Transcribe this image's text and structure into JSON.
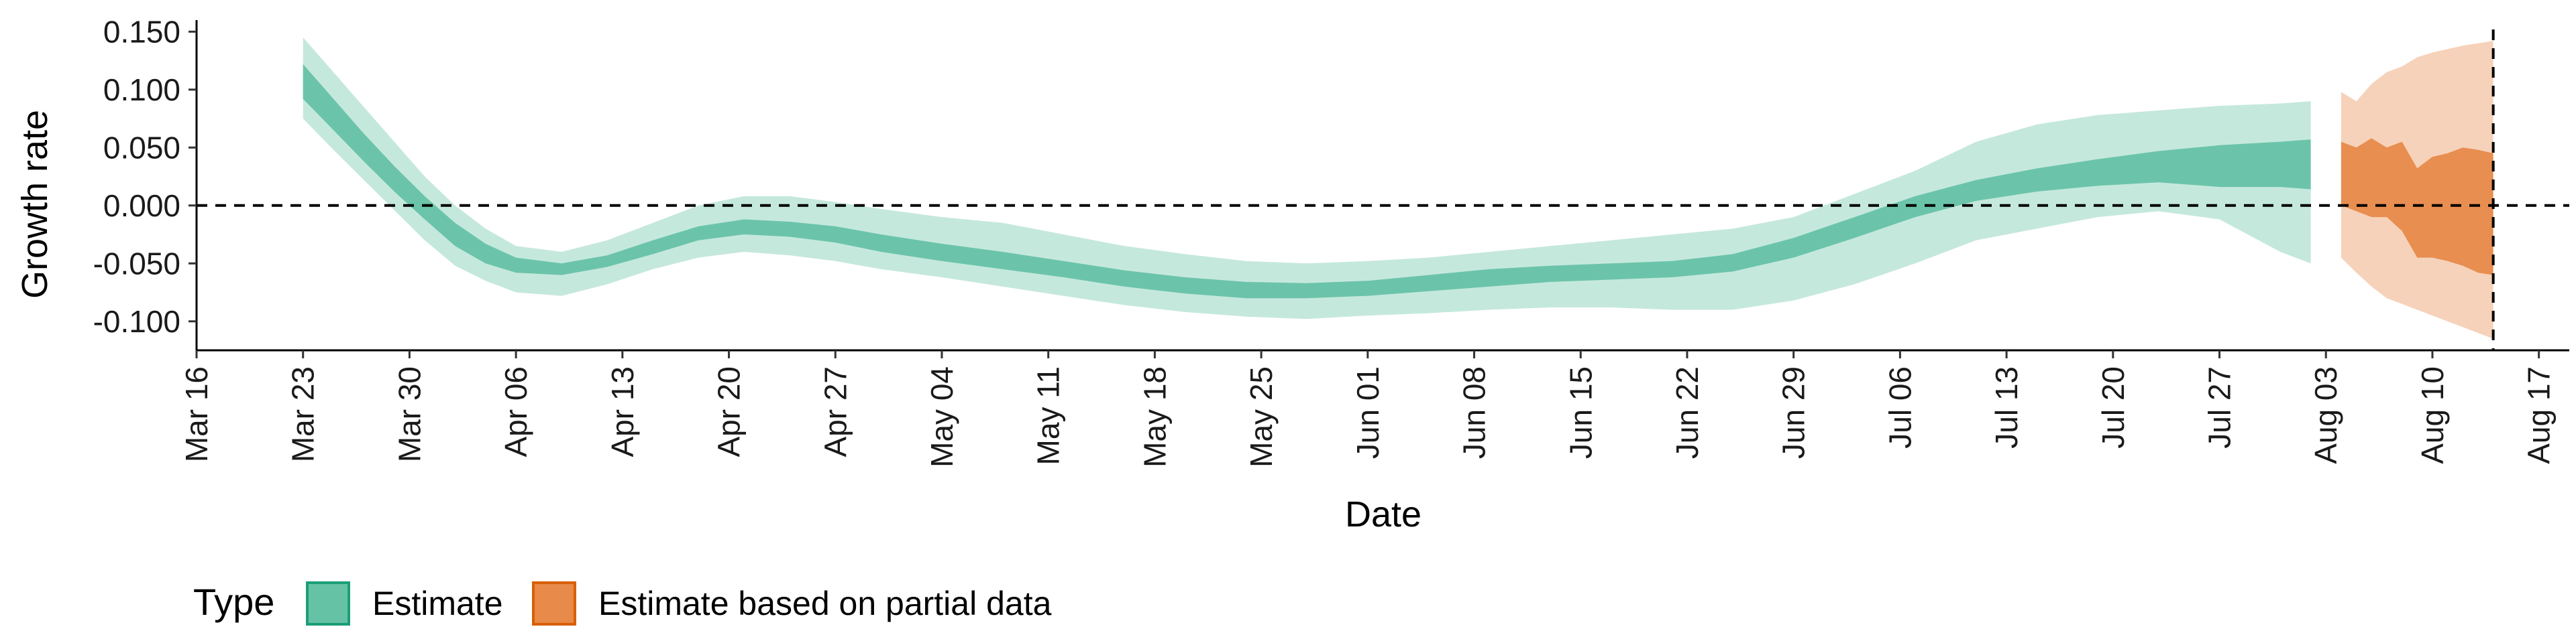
{
  "chart_data": {
    "type": "area",
    "xlabel": "Date",
    "ylabel": "Growth rate",
    "x_tick_labels": [
      "Mar 16",
      "Mar 23",
      "Mar 30",
      "Apr 06",
      "Apr 13",
      "Apr 20",
      "Apr 27",
      "May 04",
      "May 11",
      "May 18",
      "May 25",
      "Jun 01",
      "Jun 08",
      "Jun 15",
      "Jun 22",
      "Jun 29",
      "Jul 06",
      "Jul 13",
      "Jul 20",
      "Jul 27",
      "Aug 03",
      "Aug 10",
      "Aug 17"
    ],
    "x_tick_dates": [
      "2020-03-16",
      "2020-03-23",
      "2020-03-30",
      "2020-04-06",
      "2020-04-13",
      "2020-04-20",
      "2020-04-27",
      "2020-05-04",
      "2020-05-11",
      "2020-05-18",
      "2020-05-25",
      "2020-06-01",
      "2020-06-08",
      "2020-06-15",
      "2020-06-22",
      "2020-06-29",
      "2020-07-06",
      "2020-07-13",
      "2020-07-20",
      "2020-07-27",
      "2020-08-03",
      "2020-08-10",
      "2020-08-17"
    ],
    "xlim": [
      "2020-03-16",
      "2020-08-19"
    ],
    "y_tick_values": [
      -0.1,
      -0.05,
      0,
      0.05,
      0.1,
      0.15
    ],
    "y_tick_labels": [
      "-0.100",
      "-0.050",
      "0.000",
      "0.050",
      "0.100",
      "0.150"
    ],
    "ylim": [
      -0.125,
      0.16
    ],
    "reference_lines": {
      "horizontal_y": 0,
      "vertical_date": "2020-08-14"
    },
    "legend": {
      "title": "Type",
      "placement": "bottom-left",
      "entries": [
        "Estimate",
        "Estimate based on partial data"
      ]
    },
    "colors": {
      "estimate": "#66c2a5",
      "estimate_border": "#1b9e77",
      "partial": "#e78a4a",
      "partial_border": "#d95f02"
    },
    "series": [
      {
        "name": "Estimate",
        "color": "#66c2a5",
        "x": [
          "2020-03-23",
          "2020-03-25",
          "2020-03-27",
          "2020-03-29",
          "2020-03-31",
          "2020-04-02",
          "2020-04-04",
          "2020-04-06",
          "2020-04-09",
          "2020-04-12",
          "2020-04-15",
          "2020-04-18",
          "2020-04-21",
          "2020-04-24",
          "2020-04-27",
          "2020-04-30",
          "2020-05-04",
          "2020-05-08",
          "2020-05-12",
          "2020-05-16",
          "2020-05-20",
          "2020-05-24",
          "2020-05-28",
          "2020-06-01",
          "2020-06-05",
          "2020-06-09",
          "2020-06-13",
          "2020-06-17",
          "2020-06-21",
          "2020-06-25",
          "2020-06-29",
          "2020-07-03",
          "2020-07-07",
          "2020-07-11",
          "2020-07-15",
          "2020-07-19",
          "2020-07-23",
          "2020-07-27",
          "2020-07-31",
          "2020-08-02"
        ],
        "upper90": [
          0.145,
          0.115,
          0.085,
          0.055,
          0.025,
          0.0,
          -0.02,
          -0.035,
          -0.04,
          -0.03,
          -0.015,
          0.0,
          0.008,
          0.008,
          0.003,
          -0.003,
          -0.01,
          -0.015,
          -0.025,
          -0.035,
          -0.042,
          -0.048,
          -0.05,
          -0.048,
          -0.045,
          -0.04,
          -0.035,
          -0.03,
          -0.025,
          -0.02,
          -0.01,
          0.01,
          0.03,
          0.055,
          0.07,
          0.078,
          0.082,
          0.086,
          0.088,
          0.09
        ],
        "upper50": [
          0.122,
          0.092,
          0.062,
          0.034,
          0.008,
          -0.015,
          -0.033,
          -0.045,
          -0.05,
          -0.043,
          -0.03,
          -0.018,
          -0.012,
          -0.014,
          -0.018,
          -0.025,
          -0.033,
          -0.04,
          -0.048,
          -0.056,
          -0.062,
          -0.066,
          -0.067,
          -0.065,
          -0.06,
          -0.055,
          -0.052,
          -0.05,
          -0.048,
          -0.042,
          -0.028,
          -0.01,
          0.008,
          0.022,
          0.032,
          0.04,
          0.047,
          0.052,
          0.055,
          0.057
        ],
        "lower50": [
          0.092,
          0.065,
          0.038,
          0.012,
          -0.012,
          -0.035,
          -0.05,
          -0.058,
          -0.06,
          -0.053,
          -0.042,
          -0.03,
          -0.025,
          -0.027,
          -0.032,
          -0.04,
          -0.048,
          -0.055,
          -0.062,
          -0.07,
          -0.076,
          -0.08,
          -0.08,
          -0.078,
          -0.074,
          -0.07,
          -0.066,
          -0.064,
          -0.062,
          -0.057,
          -0.045,
          -0.028,
          -0.01,
          0.004,
          0.012,
          0.017,
          0.02,
          0.016,
          0.016,
          0.014
        ],
        "lower90": [
          0.075,
          0.048,
          0.022,
          -0.004,
          -0.03,
          -0.052,
          -0.065,
          -0.075,
          -0.078,
          -0.068,
          -0.055,
          -0.045,
          -0.04,
          -0.043,
          -0.048,
          -0.055,
          -0.062,
          -0.07,
          -0.078,
          -0.086,
          -0.092,
          -0.096,
          -0.098,
          -0.095,
          -0.093,
          -0.09,
          -0.088,
          -0.088,
          -0.09,
          -0.09,
          -0.082,
          -0.068,
          -0.05,
          -0.03,
          -0.02,
          -0.01,
          -0.005,
          -0.012,
          -0.04,
          -0.05
        ]
      },
      {
        "name": "Estimate based on partial data",
        "color": "#e78a4a",
        "x": [
          "2020-08-04",
          "2020-08-05",
          "2020-08-06",
          "2020-08-07",
          "2020-08-08",
          "2020-08-09",
          "2020-08-10",
          "2020-08-11",
          "2020-08-12",
          "2020-08-13",
          "2020-08-14"
        ],
        "upper90": [
          0.098,
          0.09,
          0.105,
          0.115,
          0.12,
          0.128,
          0.132,
          0.135,
          0.138,
          0.14,
          0.142
        ],
        "upper50": [
          0.055,
          0.05,
          0.058,
          0.05,
          0.055,
          0.032,
          0.042,
          0.045,
          0.05,
          0.048,
          0.045
        ],
        "lower50": [
          0.0,
          -0.005,
          -0.01,
          -0.01,
          -0.022,
          -0.045,
          -0.045,
          -0.048,
          -0.052,
          -0.058,
          -0.06
        ],
        "lower90": [
          -0.045,
          -0.058,
          -0.07,
          -0.08,
          -0.085,
          -0.09,
          -0.095,
          -0.1,
          -0.105,
          -0.11,
          -0.115
        ]
      }
    ]
  }
}
